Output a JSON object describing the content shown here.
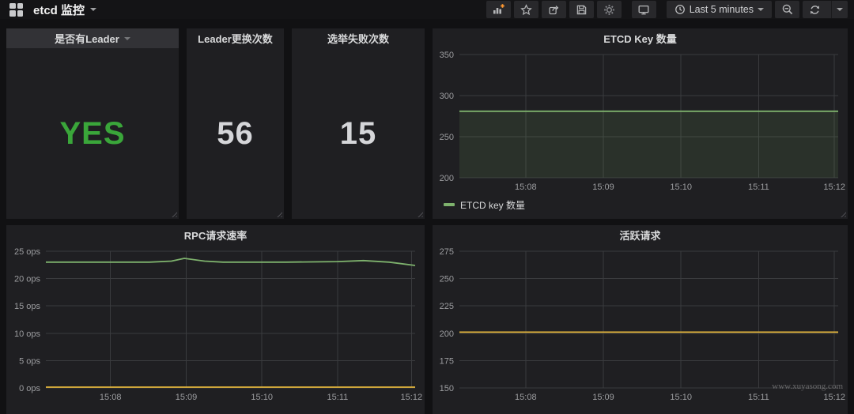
{
  "navbar": {
    "title": "etcd 监控",
    "time_picker_label": "Last 5 minutes",
    "icons": [
      "grafana-logo",
      "add-panel-icon",
      "star-icon",
      "share-icon",
      "save-icon",
      "gear-icon",
      "monitor-icon",
      "clock-icon",
      "zoom-out-icon",
      "refresh-icon",
      "caret-down-icon"
    ],
    "accent_orange": "#ff9830"
  },
  "stats": {
    "has_leader": {
      "title": "是否有Leader",
      "value": "YES",
      "value_color": "#3aa63a"
    },
    "leader_changes": {
      "title": "Leader更换次数",
      "value": "56",
      "value_color": "#d5d6d9"
    },
    "election_failures": {
      "title": "选举失败次数",
      "value": "15",
      "value_color": "#d5d6d9"
    }
  },
  "chart_data": [
    {
      "type": "line",
      "title": "ETCD Key 数量",
      "x_ticks": [
        "15:08",
        "15:09",
        "15:10",
        "15:11",
        "15:12"
      ],
      "x_tick_pos": [
        0.175,
        0.38,
        0.585,
        0.79,
        0.99
      ],
      "y_ticks": [
        200,
        250,
        300,
        350
      ],
      "ylim": [
        200,
        350
      ],
      "y_unit": "",
      "grid": true,
      "legend_position": "bottom-left",
      "series": [
        {
          "name": "ETCD key 数量",
          "color": "#7eb26d",
          "fill": true,
          "points": [
            [
              0,
              281
            ],
            [
              1,
              281
            ]
          ]
        }
      ]
    },
    {
      "type": "line",
      "title": "RPC请求速率",
      "x_ticks": [
        "15:08",
        "15:09",
        "15:10",
        "15:11",
        "15:12"
      ],
      "x_tick_pos": [
        0.175,
        0.38,
        0.585,
        0.79,
        0.99
      ],
      "y_ticks": [
        0,
        5,
        10,
        15,
        20,
        25
      ],
      "ylim": [
        0,
        25
      ],
      "y_unit": " ops",
      "grid": true,
      "series": [
        {
          "color": "#7eb26d",
          "fill": false,
          "points": [
            [
              0,
              23
            ],
            [
              0.28,
              23
            ],
            [
              0.34,
              23.2
            ],
            [
              0.375,
              23.7
            ],
            [
              0.43,
              23.2
            ],
            [
              0.48,
              23
            ],
            [
              0.65,
              23
            ],
            [
              0.79,
              23.1
            ],
            [
              0.86,
              23.3
            ],
            [
              0.93,
              23
            ],
            [
              1,
              22.4
            ]
          ]
        },
        {
          "color": "#e3b63c",
          "fill": false,
          "points": [
            [
              0,
              0.15
            ],
            [
              1,
              0.15
            ]
          ]
        }
      ]
    },
    {
      "type": "line",
      "title": "活跃请求",
      "x_ticks": [
        "15:08",
        "15:09",
        "15:10",
        "15:11",
        "15:12"
      ],
      "x_tick_pos": [
        0.175,
        0.38,
        0.585,
        0.79,
        0.99
      ],
      "y_ticks": [
        150,
        175,
        200,
        225,
        250,
        275
      ],
      "ylim": [
        150,
        275
      ],
      "y_unit": "",
      "grid": true,
      "series": [
        {
          "color": "#e3b63c",
          "fill": false,
          "points": [
            [
              0,
              201
            ],
            [
              1,
              201
            ]
          ]
        }
      ]
    }
  ],
  "watermark": "www.xuyasong.com"
}
